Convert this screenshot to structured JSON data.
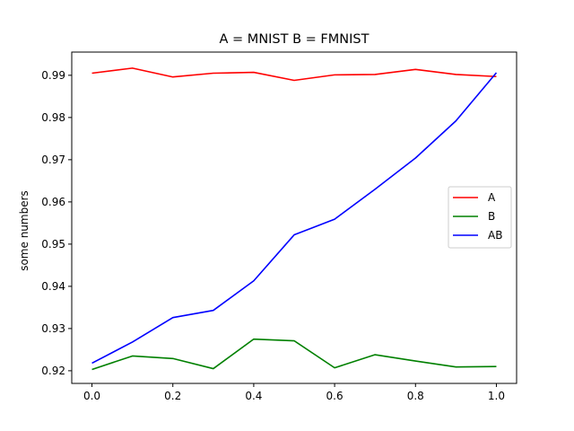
{
  "chart_data": {
    "type": "line",
    "title": "A = MNIST B = FMNIST",
    "xlabel": "",
    "ylabel": "some numbers",
    "xlim": [
      -0.05,
      1.05
    ],
    "ylim": [
      0.917,
      0.9955
    ],
    "x_ticks": [
      0.0,
      0.2,
      0.4,
      0.6,
      0.8,
      1.0
    ],
    "x_tick_labels": [
      "0.0",
      "0.2",
      "0.4",
      "0.6",
      "0.8",
      "1.0"
    ],
    "y_ticks": [
      0.92,
      0.93,
      0.94,
      0.95,
      0.96,
      0.97,
      0.98,
      0.99
    ],
    "y_tick_labels": [
      "0.92",
      "0.93",
      "0.94",
      "0.95",
      "0.96",
      "0.97",
      "0.98",
      "0.99"
    ],
    "grid": false,
    "legend_position": "center-right",
    "x": [
      0.0,
      0.1,
      0.2,
      0.3,
      0.4,
      0.5,
      0.6,
      0.7,
      0.8,
      0.9,
      1.0
    ],
    "series": [
      {
        "name": "A",
        "color": "#ff0000",
        "values": [
          0.9905,
          0.9917,
          0.9896,
          0.9905,
          0.9907,
          0.9888,
          0.9901,
          0.9902,
          0.9914,
          0.9902,
          0.9897
        ]
      },
      {
        "name": "B",
        "color": "#008000",
        "values": [
          0.9203,
          0.9235,
          0.9229,
          0.9205,
          0.9275,
          0.9271,
          0.9207,
          0.9238,
          0.9223,
          0.9209,
          0.921
        ]
      },
      {
        "name": "AB",
        "color": "#0000ff",
        "values": [
          0.9218,
          0.9268,
          0.9326,
          0.9343,
          0.9413,
          0.9522,
          0.9559,
          0.963,
          0.9704,
          0.9792,
          0.9906
        ]
      }
    ]
  }
}
